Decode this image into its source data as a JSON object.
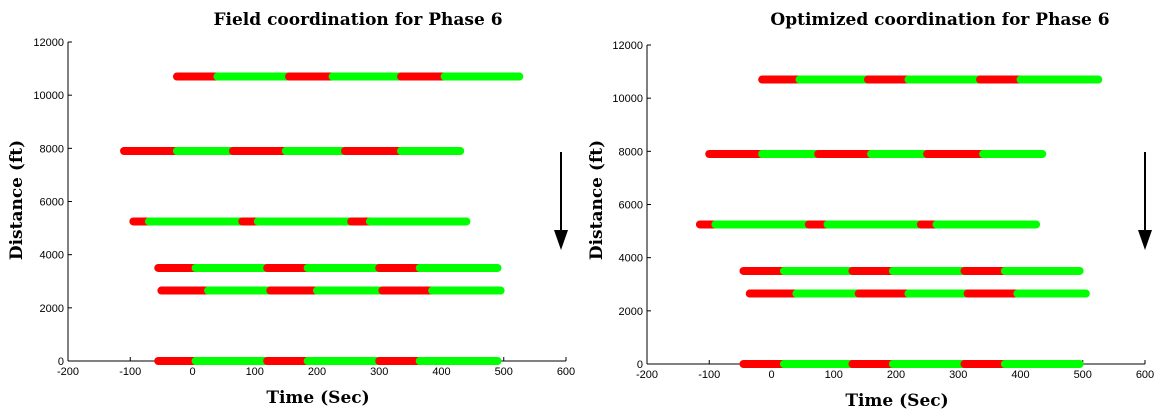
{
  "chart_data": [
    {
      "type": "line",
      "title": "Field coordination for Phase 6",
      "xlabel": "Time (Sec)",
      "ylabel": "Distance (ft)",
      "xlim": [
        -200,
        600
      ],
      "ylim": [
        0,
        12000
      ],
      "xticks": [
        -200,
        -100,
        0,
        100,
        200,
        300,
        400,
        500,
        600
      ],
      "yticks": [
        0,
        2000,
        4000,
        6000,
        8000,
        10000,
        12000
      ],
      "grid": false,
      "arrow": "down",
      "colors": {
        "red": "#ff0000",
        "green": "#00ff00"
      },
      "rows": [
        {
          "y": 10700,
          "segments": [
            [
              -25,
              40,
              "red"
            ],
            [
              40,
              155,
              "green"
            ],
            [
              155,
              225,
              "red"
            ],
            [
              225,
              335,
              "green"
            ],
            [
              335,
              405,
              "red"
            ],
            [
              405,
              525,
              "green"
            ]
          ]
        },
        {
          "y": 7900,
          "segments": [
            [
              -110,
              -25,
              "red"
            ],
            [
              -25,
              65,
              "green"
            ],
            [
              65,
              150,
              "red"
            ],
            [
              150,
              245,
              "green"
            ],
            [
              245,
              335,
              "red"
            ],
            [
              335,
              430,
              "green"
            ]
          ]
        },
        {
          "y": 5250,
          "segments": [
            [
              -95,
              -70,
              "red"
            ],
            [
              -70,
              80,
              "green"
            ],
            [
              80,
              105,
              "red"
            ],
            [
              105,
              255,
              "green"
            ],
            [
              255,
              285,
              "red"
            ],
            [
              285,
              440,
              "green"
            ]
          ]
        },
        {
          "y": 3500,
          "segments": [
            [
              -55,
              5,
              "red"
            ],
            [
              5,
              120,
              "green"
            ],
            [
              120,
              185,
              "red"
            ],
            [
              185,
              300,
              "green"
            ],
            [
              300,
              365,
              "red"
            ],
            [
              365,
              490,
              "green"
            ]
          ]
        },
        {
          "y": 2650,
          "segments": [
            [
              -50,
              25,
              "red"
            ],
            [
              25,
              125,
              "green"
            ],
            [
              125,
              200,
              "red"
            ],
            [
              200,
              305,
              "green"
            ],
            [
              305,
              385,
              "red"
            ],
            [
              385,
              495,
              "green"
            ]
          ]
        },
        {
          "y": 0,
          "segments": [
            [
              -55,
              5,
              "red"
            ],
            [
              5,
              120,
              "green"
            ],
            [
              120,
              185,
              "red"
            ],
            [
              185,
              300,
              "green"
            ],
            [
              300,
              365,
              "red"
            ],
            [
              365,
              490,
              "green"
            ]
          ]
        }
      ]
    },
    {
      "type": "line",
      "title": "Optimized coordination for Phase 6",
      "xlabel": "Time (Sec)",
      "ylabel": "Distance (ft)",
      "xlim": [
        -200,
        600
      ],
      "ylim": [
        0,
        12000
      ],
      "xticks": [
        -200,
        -100,
        0,
        100,
        200,
        300,
        400,
        500,
        600
      ],
      "yticks": [
        0,
        2000,
        4000,
        6000,
        8000,
        10000,
        12000
      ],
      "grid": false,
      "arrow": "down",
      "colors": {
        "red": "#ff0000",
        "green": "#00ff00"
      },
      "rows": [
        {
          "y": 10700,
          "segments": [
            [
              -15,
              45,
              "red"
            ],
            [
              45,
              155,
              "green"
            ],
            [
              155,
              220,
              "red"
            ],
            [
              220,
              335,
              "green"
            ],
            [
              335,
              400,
              "red"
            ],
            [
              400,
              525,
              "green"
            ]
          ]
        },
        {
          "y": 7900,
          "segments": [
            [
              -100,
              -15,
              "red"
            ],
            [
              -15,
              75,
              "green"
            ],
            [
              75,
              160,
              "red"
            ],
            [
              160,
              250,
              "green"
            ],
            [
              250,
              340,
              "red"
            ],
            [
              340,
              435,
              "green"
            ]
          ]
        },
        {
          "y": 5250,
          "segments": [
            [
              -115,
              -90,
              "red"
            ],
            [
              -90,
              60,
              "green"
            ],
            [
              60,
              90,
              "red"
            ],
            [
              90,
              240,
              "green"
            ],
            [
              240,
              265,
              "red"
            ],
            [
              265,
              425,
              "green"
            ]
          ]
        },
        {
          "y": 3500,
          "segments": [
            [
              -45,
              20,
              "red"
            ],
            [
              20,
              130,
              "green"
            ],
            [
              130,
              195,
              "red"
            ],
            [
              195,
              310,
              "green"
            ],
            [
              310,
              375,
              "red"
            ],
            [
              375,
              495,
              "green"
            ]
          ]
        },
        {
          "y": 2650,
          "segments": [
            [
              -35,
              40,
              "red"
            ],
            [
              40,
              140,
              "green"
            ],
            [
              140,
              220,
              "red"
            ],
            [
              220,
              315,
              "green"
            ],
            [
              315,
              395,
              "red"
            ],
            [
              395,
              505,
              "green"
            ]
          ]
        },
        {
          "y": 0,
          "segments": [
            [
              -45,
              20,
              "red"
            ],
            [
              20,
              130,
              "green"
            ],
            [
              130,
              195,
              "red"
            ],
            [
              195,
              310,
              "green"
            ],
            [
              310,
              375,
              "red"
            ],
            [
              375,
              495,
              "green"
            ]
          ]
        }
      ]
    }
  ]
}
